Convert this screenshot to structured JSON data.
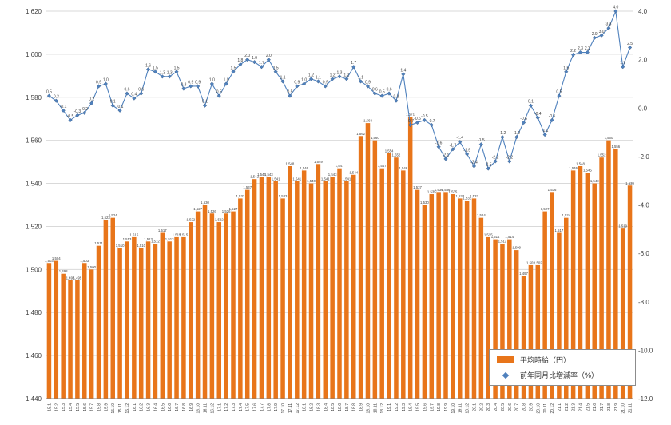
{
  "chart_data": {
    "type": "bar+line combo",
    "title": "",
    "categories": [
      "15.1",
      "15.2",
      "15.3",
      "15.4",
      "15.5",
      "15.6",
      "15.7",
      "15.8",
      "15.9",
      "15.10",
      "15.11",
      "15.12",
      "16.1",
      "16.2",
      "16.3",
      "16.4",
      "16.5",
      "16.6",
      "16.7",
      "16.8",
      "16.9",
      "16.10",
      "16.11",
      "16.12",
      "17.1",
      "17.2",
      "17.3",
      "17.4",
      "17.5",
      "17.6",
      "17.7",
      "17.8",
      "17.9",
      "17.10",
      "17.11",
      "17.12",
      "18.1",
      "18.2",
      "18.3",
      "18.4",
      "18.5",
      "18.6",
      "18.7",
      "18.8",
      "18.9",
      "18.10",
      "18.11",
      "18.12",
      "19.1",
      "19.2",
      "19.3",
      "19.4",
      "19.5",
      "19.6",
      "19.7",
      "19.8",
      "19.9",
      "19.10",
      "19.11",
      "19.12",
      "20.1",
      "20.2",
      "20.3",
      "20.4",
      "20.5",
      "20.6",
      "20.7",
      "20.8",
      "20.9",
      "20.10",
      "20.11",
      "20.12",
      "21.1",
      "21.2",
      "21.3",
      "21.4",
      "21.5",
      "21.6",
      "21.7",
      "21.8",
      "21.9",
      "21.10",
      "21.11"
    ],
    "series": [
      {
        "name": "平均時給（円）",
        "type": "bar",
        "axis": "left",
        "color": "#E8751A",
        "values": [
          1503,
          1504,
          1498,
          1495,
          1495,
          1503,
          1500,
          1511,
          1523,
          1524,
          1510,
          1513,
          1515,
          1510,
          1513,
          1512,
          1517,
          1513,
          1515,
          1515,
          1522,
          1527,
          1530,
          1526,
          1522,
          1526,
          1527,
          1533,
          1537,
          1542,
          1543,
          1543,
          1541,
          1533,
          1548,
          1541,
          1546,
          1540,
          1549,
          1541,
          1543,
          1547,
          1541,
          1544,
          1562,
          1568,
          1560,
          1547,
          1554,
          1552,
          1546,
          1571,
          1537,
          1530,
          1535,
          1536,
          1536,
          1535,
          1533,
          1532,
          1533,
          1524,
          1515,
          1514,
          1512,
          1514,
          1509,
          1497,
          1502,
          1502,
          1527,
          1536,
          1517,
          1524,
          1546,
          1548,
          1545,
          1540,
          1552,
          1560,
          1556,
          1519,
          1539
        ]
      },
      {
        "name": "前年同月比増減率（%）",
        "type": "line",
        "axis": "right",
        "color": "#4F81BD",
        "values": [
          0.5,
          0.3,
          -0.1,
          -0.5,
          -0.3,
          -0.2,
          0.2,
          0.9,
          1.0,
          0.1,
          -0.1,
          0.6,
          0.4,
          0.6,
          1.6,
          1.5,
          1.3,
          1.3,
          1.5,
          0.8,
          0.9,
          0.9,
          0.1,
          1.0,
          0.5,
          1.0,
          1.5,
          1.8,
          2.0,
          1.9,
          1.7,
          2.0,
          1.5,
          1.1,
          0.5,
          0.9,
          1.0,
          1.2,
          1.1,
          0.9,
          1.2,
          1.3,
          1.2,
          1.7,
          1.1,
          0.9,
          0.6,
          0.5,
          0.6,
          0.3,
          1.4,
          -0.7,
          -0.6,
          -0.5,
          -0.7,
          -1.6,
          -2.1,
          -1.7,
          -1.4,
          -1.9,
          -2.4,
          -1.5,
          -2.5,
          -2.2,
          -1.2,
          -2.2,
          -1.2,
          -0.6,
          0.1,
          -0.4,
          -1.1,
          -0.5,
          0.5,
          1.5,
          2.2,
          2.3,
          2.3,
          2.9,
          3.0,
          3.3,
          4.0,
          1.7,
          2.5
        ]
      }
    ],
    "left_axis": {
      "min": 1440,
      "max": 1620,
      "step": 20,
      "tick_labels": [
        "1,620",
        "1,600",
        "1,580",
        "1,560",
        "1,540",
        "1,520",
        "1,500",
        "1,480",
        "1,460",
        "1,440"
      ]
    },
    "right_axis": {
      "min": -12.0,
      "max": 4.0,
      "step": 2.0,
      "tick_labels": [
        "4.0",
        "2.0",
        "0.0",
        "-2.0",
        "-4.0",
        "-6.0",
        "-8.0",
        "-10.0",
        "-12.0"
      ]
    },
    "legend": {
      "position": "bottom-right",
      "entries": [
        "平均時給（円）",
        "前年同月比増減率（%）"
      ]
    },
    "grid": true,
    "gridline_color": "#d9d9d9",
    "axis_line_color": "#808080",
    "label_color": "#404040"
  }
}
